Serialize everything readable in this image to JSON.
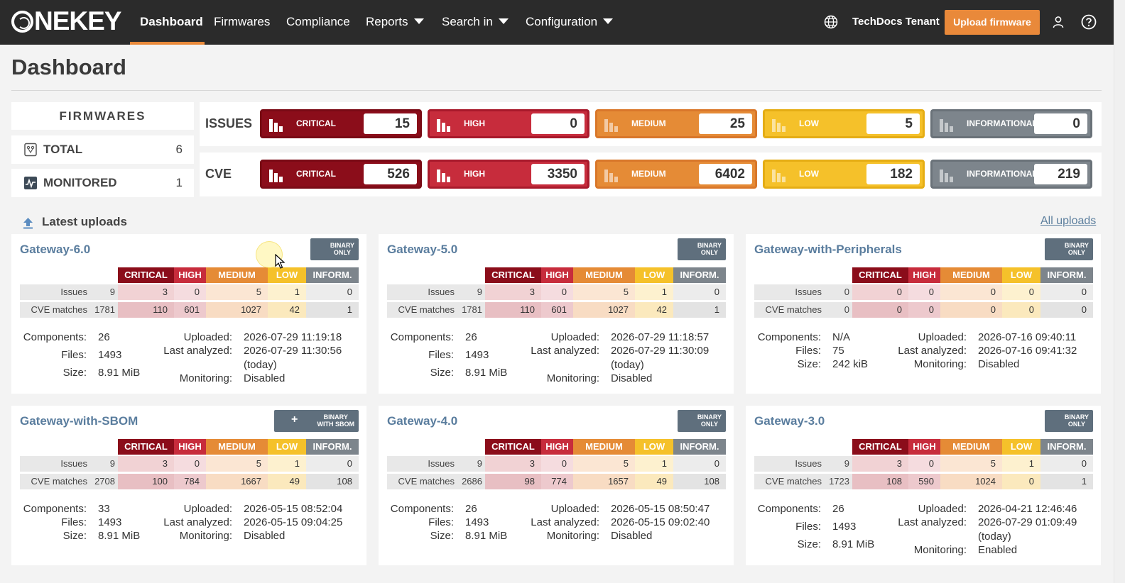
{
  "nav": {
    "logo": "NEKEY",
    "items": [
      "Dashboard",
      "Firmwares",
      "Compliance",
      "Reports",
      "Search in",
      "Configuration"
    ],
    "tenant": "TechDocs Tenant",
    "upload_button": "Upload firmware"
  },
  "page": {
    "title": "Dashboard"
  },
  "firmwares": {
    "heading": "FIRMWARES",
    "total_label": "TOTAL",
    "total": "6",
    "monitored_label": "MONITORED",
    "monitored": "1"
  },
  "severity": {
    "issues_label": "ISSUES",
    "cve_label": "CVE",
    "names": [
      "CRITICAL",
      "HIGH",
      "MEDIUM",
      "LOW",
      "INFORMATIONAL"
    ],
    "issues": [
      "15",
      "0",
      "25",
      "5",
      "0"
    ],
    "cve": [
      "526",
      "3350",
      "6402",
      "182",
      "219"
    ],
    "colors": [
      "#8b0d1a",
      "#c72c3c",
      "#e58b36",
      "#f5c12a",
      "#7d858c"
    ]
  },
  "uploads": {
    "title": "Latest uploads",
    "all_link": "All uploads",
    "table_headers": [
      "CRITICAL",
      "HIGH",
      "MEDIUM",
      "LOW",
      "INFORM."
    ],
    "row_issues": "Issues",
    "row_cve": "CVE matches",
    "meta_keys": {
      "components": "Components:",
      "files": "Files:",
      "size": "Size:",
      "uploaded": "Uploaded:",
      "analyzed": "Last analyzed:",
      "monitoring": "Monitoring:"
    },
    "cards": [
      {
        "name": "Gateway-6.0",
        "badge": [
          "BINARY",
          "ONLY"
        ],
        "issues_total": "9",
        "issues": [
          "3",
          "0",
          "5",
          "1",
          "0"
        ],
        "cve_total": "1781",
        "cve": [
          "110",
          "601",
          "1027",
          "42",
          "1"
        ],
        "components": "26",
        "files": "1493",
        "size": "8.91 MiB",
        "uploaded": "2026-07-29 11:19:18",
        "analyzed": "2026-07-29 11:30:56",
        "analyzed_note": "(today)",
        "monitoring": "Disabled"
      },
      {
        "name": "Gateway-5.0",
        "badge": [
          "BINARY",
          "ONLY"
        ],
        "issues_total": "9",
        "issues": [
          "3",
          "0",
          "5",
          "1",
          "0"
        ],
        "cve_total": "1781",
        "cve": [
          "110",
          "601",
          "1027",
          "42",
          "1"
        ],
        "components": "26",
        "files": "1493",
        "size": "8.91 MiB",
        "uploaded": "2026-07-29 11:18:57",
        "analyzed": "2026-07-29 11:30:09",
        "analyzed_note": "(today)",
        "monitoring": "Disabled"
      },
      {
        "name": "Gateway-with-Peripherals",
        "badge": [
          "BINARY",
          "ONLY"
        ],
        "issues_total": "0",
        "issues": [
          "0",
          "0",
          "0",
          "0",
          "0"
        ],
        "cve_total": "0",
        "cve": [
          "0",
          "0",
          "0",
          "0",
          "0"
        ],
        "components": "N/A",
        "files": "75",
        "size": "242 kiB",
        "uploaded": "2026-07-16 09:40:11",
        "analyzed": "2026-07-16 09:41:32",
        "analyzed_note": "",
        "monitoring": "Disabled"
      },
      {
        "name": "Gateway-with-SBOM",
        "badge": [
          "BINARY",
          "WITH SBOM"
        ],
        "issues_total": "9",
        "issues": [
          "3",
          "0",
          "5",
          "1",
          "0"
        ],
        "cve_total": "2708",
        "cve": [
          "100",
          "784",
          "1667",
          "49",
          "108"
        ],
        "components": "33",
        "files": "1493",
        "size": "8.91 MiB",
        "uploaded": "2026-05-15 08:52:04",
        "analyzed": "2026-05-15 09:04:25",
        "analyzed_note": "",
        "monitoring": "Disabled"
      },
      {
        "name": "Gateway-4.0",
        "badge": [
          "BINARY",
          "ONLY"
        ],
        "issues_total": "9",
        "issues": [
          "3",
          "0",
          "5",
          "1",
          "0"
        ],
        "cve_total": "2686",
        "cve": [
          "98",
          "774",
          "1657",
          "49",
          "108"
        ],
        "components": "26",
        "files": "1493",
        "size": "8.91 MiB",
        "uploaded": "2026-05-15 08:50:47",
        "analyzed": "2026-05-15 09:02:40",
        "analyzed_note": "",
        "monitoring": "Disabled"
      },
      {
        "name": "Gateway-3.0",
        "badge": [
          "BINARY",
          "ONLY"
        ],
        "issues_total": "9",
        "issues": [
          "3",
          "0",
          "5",
          "1",
          "0"
        ],
        "cve_total": "1723",
        "cve": [
          "108",
          "590",
          "1024",
          "0",
          "1"
        ],
        "components": "26",
        "files": "1493",
        "size": "8.91 MiB",
        "uploaded": "2026-04-21 12:46:46",
        "analyzed": "2026-07-29 01:09:49",
        "analyzed_note": "(today)",
        "monitoring": "Enabled"
      }
    ]
  }
}
